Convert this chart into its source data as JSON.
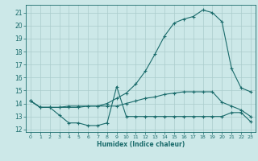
{
  "xlabel": "Humidex (Indice chaleur)",
  "background_color": "#cce8e8",
  "grid_color": "#aacccc",
  "line_color": "#1a6b6b",
  "xlim": [
    -0.5,
    23.5
  ],
  "ylim": [
    11.8,
    21.6
  ],
  "yticks": [
    12,
    13,
    14,
    15,
    16,
    17,
    18,
    19,
    20,
    21
  ],
  "xticks": [
    0,
    1,
    2,
    3,
    4,
    5,
    6,
    7,
    8,
    9,
    10,
    11,
    12,
    13,
    14,
    15,
    16,
    17,
    18,
    19,
    20,
    21,
    22,
    23
  ],
  "line1_x": [
    0,
    1,
    2,
    3,
    4,
    5,
    6,
    7,
    8,
    9,
    10,
    11,
    12,
    13,
    14,
    15,
    16,
    17,
    18,
    19,
    20,
    21,
    22,
    23
  ],
  "line1_y": [
    14.2,
    13.7,
    13.7,
    13.1,
    12.5,
    12.5,
    12.3,
    12.3,
    12.5,
    15.3,
    13.0,
    13.0,
    13.0,
    13.0,
    13.0,
    13.0,
    13.0,
    13.0,
    13.0,
    13.0,
    13.0,
    13.3,
    13.3,
    12.6
  ],
  "line2_x": [
    0,
    1,
    2,
    3,
    4,
    5,
    6,
    7,
    8,
    9,
    10,
    11,
    12,
    13,
    14,
    15,
    16,
    17,
    18,
    19,
    20,
    21,
    22,
    23
  ],
  "line2_y": [
    14.2,
    13.7,
    13.7,
    13.7,
    13.7,
    13.7,
    13.8,
    13.8,
    13.8,
    13.8,
    14.0,
    14.2,
    14.4,
    14.5,
    14.7,
    14.8,
    14.9,
    14.9,
    14.9,
    14.9,
    14.1,
    13.8,
    13.5,
    13.0
  ],
  "line3_x": [
    0,
    1,
    2,
    3,
    4,
    5,
    6,
    7,
    8,
    9,
    10,
    11,
    12,
    13,
    14,
    15,
    16,
    17,
    18,
    19,
    20,
    21,
    22,
    23
  ],
  "line3_y": [
    14.2,
    13.7,
    13.7,
    13.7,
    13.8,
    13.8,
    13.8,
    13.8,
    14.0,
    14.4,
    14.8,
    15.5,
    16.5,
    17.8,
    19.2,
    20.2,
    20.5,
    20.7,
    21.2,
    21.0,
    20.3,
    16.7,
    15.2,
    14.9
  ]
}
